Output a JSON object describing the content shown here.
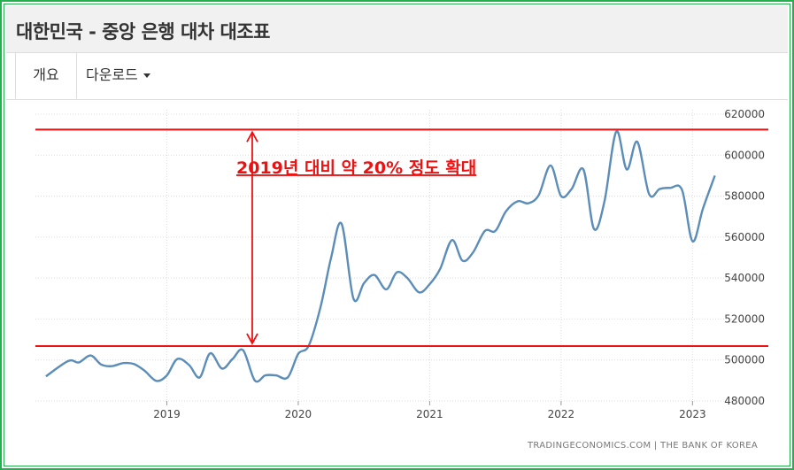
{
  "page": {
    "title": "대한민국 - 중앙 은행 대차 대조표",
    "tabs": [
      {
        "label": "개요",
        "active": true
      },
      {
        "label": "다운로드",
        "active": false,
        "has_dropdown": true
      }
    ],
    "source": "TRADINGECONOMICS.COM  |  THE BANK OF KOREA"
  },
  "chart_data": {
    "type": "line",
    "x_tick_labels": [
      "2019",
      "2020",
      "2021",
      "2022",
      "2023"
    ],
    "x_ticks": [
      2019.0,
      2020.0,
      2021.0,
      2022.0,
      2023.0
    ],
    "y_tick_labels": [
      "480000",
      "500000",
      "520000",
      "540000",
      "560000",
      "580000",
      "600000",
      "620000"
    ],
    "ylim": [
      480000,
      620000
    ],
    "xlim": [
      2018.0,
      2023.55
    ],
    "grid": true,
    "line_color": "#5b8db8",
    "series": [
      {
        "values": [
          [
            2018.08,
            492000
          ],
          [
            2018.25,
            499500
          ],
          [
            2018.33,
            498800
          ],
          [
            2018.42,
            502200
          ],
          [
            2018.5,
            497800
          ],
          [
            2018.58,
            497000
          ],
          [
            2018.67,
            498500
          ],
          [
            2018.75,
            498000
          ],
          [
            2018.83,
            494800
          ],
          [
            2018.92,
            489800
          ],
          [
            2019.0,
            492500
          ],
          [
            2019.08,
            500500
          ],
          [
            2019.17,
            497500
          ],
          [
            2019.25,
            491500
          ],
          [
            2019.33,
            503300
          ],
          [
            2019.42,
            495800
          ],
          [
            2019.5,
            500500
          ],
          [
            2019.58,
            504800
          ],
          [
            2019.67,
            490000
          ],
          [
            2019.75,
            492500
          ],
          [
            2019.83,
            492500
          ],
          [
            2019.92,
            491500
          ],
          [
            2020.0,
            503000
          ],
          [
            2020.08,
            507000
          ],
          [
            2020.17,
            526000
          ],
          [
            2020.25,
            550000
          ],
          [
            2020.33,
            566500
          ],
          [
            2020.42,
            530000
          ],
          [
            2020.5,
            537500
          ],
          [
            2020.58,
            541500
          ],
          [
            2020.67,
            534500
          ],
          [
            2020.75,
            542800
          ],
          [
            2020.83,
            540000
          ],
          [
            2020.92,
            533000
          ],
          [
            2021.0,
            537000
          ],
          [
            2021.08,
            544500
          ],
          [
            2021.17,
            558500
          ],
          [
            2021.25,
            548500
          ],
          [
            2021.33,
            552500
          ],
          [
            2021.42,
            563000
          ],
          [
            2021.5,
            563000
          ],
          [
            2021.58,
            572500
          ],
          [
            2021.67,
            577500
          ],
          [
            2021.75,
            576500
          ],
          [
            2021.83,
            580500
          ],
          [
            2021.92,
            595000
          ],
          [
            2022.0,
            580000
          ],
          [
            2022.08,
            583500
          ],
          [
            2022.17,
            593000
          ],
          [
            2022.25,
            564000
          ],
          [
            2022.33,
            577500
          ],
          [
            2022.42,
            611500
          ],
          [
            2022.5,
            593000
          ],
          [
            2022.58,
            606500
          ],
          [
            2022.67,
            581000
          ],
          [
            2022.75,
            583500
          ],
          [
            2022.83,
            584000
          ],
          [
            2022.92,
            583000
          ],
          [
            2023.0,
            558000
          ],
          [
            2023.08,
            574000
          ],
          [
            2023.17,
            590000
          ]
        ]
      }
    ],
    "annotation": {
      "text": "2019년 대비 약 20% 정도 확대",
      "color": "#ee1111",
      "upper_line_value": 612500,
      "lower_line_value": 506800,
      "arrow_x": 2019.65
    }
  }
}
